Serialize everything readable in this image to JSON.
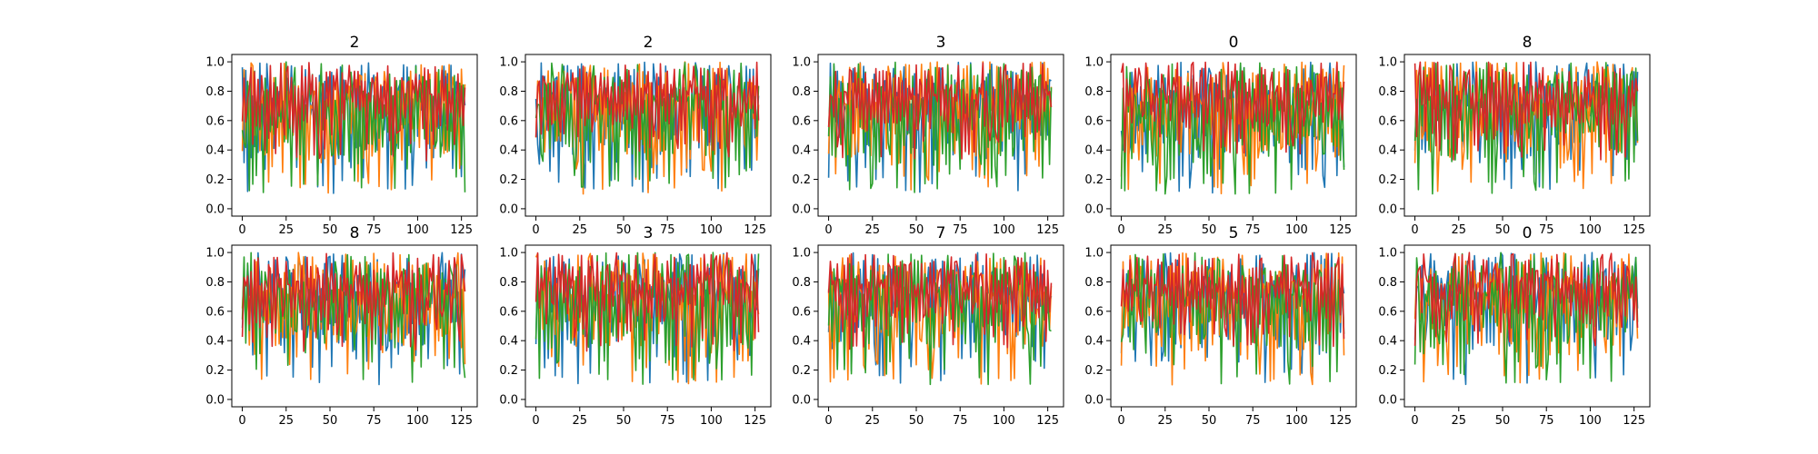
{
  "chart_data": [
    {
      "type": "line",
      "title": "2",
      "xlim": [
        -6,
        134
      ],
      "ylim": [
        -0.05,
        1.05
      ],
      "xticks": [
        0,
        25,
        50,
        75,
        100,
        125
      ],
      "yticks": [
        0.0,
        0.2,
        0.4,
        0.6,
        0.8,
        1.0
      ],
      "x_range": [
        0,
        127
      ],
      "series_colors": [
        "#1f77b4",
        "#ff7f0e",
        "#2ca02c",
        "#d62728"
      ]
    },
    {
      "type": "line",
      "title": "2",
      "xlim": [
        -6,
        134
      ],
      "ylim": [
        -0.05,
        1.05
      ],
      "xticks": [
        0,
        25,
        50,
        75,
        100,
        125
      ],
      "yticks": [
        0.0,
        0.2,
        0.4,
        0.6,
        0.8,
        1.0
      ],
      "x_range": [
        0,
        127
      ],
      "series_colors": [
        "#1f77b4",
        "#ff7f0e",
        "#2ca02c",
        "#d62728"
      ]
    },
    {
      "type": "line",
      "title": "3",
      "xlim": [
        -6,
        134
      ],
      "ylim": [
        -0.05,
        1.05
      ],
      "xticks": [
        0,
        25,
        50,
        75,
        100,
        125
      ],
      "yticks": [
        0.0,
        0.2,
        0.4,
        0.6,
        0.8,
        1.0
      ],
      "x_range": [
        0,
        127
      ],
      "series_colors": [
        "#1f77b4",
        "#ff7f0e",
        "#2ca02c",
        "#d62728"
      ]
    },
    {
      "type": "line",
      "title": "0",
      "xlim": [
        -6,
        134
      ],
      "ylim": [
        -0.05,
        1.05
      ],
      "xticks": [
        0,
        25,
        50,
        75,
        100,
        125
      ],
      "yticks": [
        0.0,
        0.2,
        0.4,
        0.6,
        0.8,
        1.0
      ],
      "x_range": [
        0,
        127
      ],
      "series_colors": [
        "#1f77b4",
        "#ff7f0e",
        "#2ca02c",
        "#d62728"
      ]
    },
    {
      "type": "line",
      "title": "8",
      "xlim": [
        -6,
        134
      ],
      "ylim": [
        -0.05,
        1.05
      ],
      "xticks": [
        0,
        25,
        50,
        75,
        100,
        125
      ],
      "yticks": [
        0.0,
        0.2,
        0.4,
        0.6,
        0.8,
        1.0
      ],
      "x_range": [
        0,
        127
      ],
      "series_colors": [
        "#1f77b4",
        "#ff7f0e",
        "#2ca02c",
        "#d62728"
      ]
    },
    {
      "type": "line",
      "title": "8",
      "xlim": [
        -6,
        134
      ],
      "ylim": [
        -0.05,
        1.05
      ],
      "xticks": [
        0,
        25,
        50,
        75,
        100,
        125
      ],
      "yticks": [
        0.0,
        0.2,
        0.4,
        0.6,
        0.8,
        1.0
      ],
      "x_range": [
        0,
        127
      ],
      "series_colors": [
        "#1f77b4",
        "#ff7f0e",
        "#2ca02c",
        "#d62728"
      ]
    },
    {
      "type": "line",
      "title": "3",
      "xlim": [
        -6,
        134
      ],
      "ylim": [
        -0.05,
        1.05
      ],
      "xticks": [
        0,
        25,
        50,
        75,
        100,
        125
      ],
      "yticks": [
        0.0,
        0.2,
        0.4,
        0.6,
        0.8,
        1.0
      ],
      "x_range": [
        0,
        127
      ],
      "series_colors": [
        "#1f77b4",
        "#ff7f0e",
        "#2ca02c",
        "#d62728"
      ]
    },
    {
      "type": "line",
      "title": "7",
      "xlim": [
        -6,
        134
      ],
      "ylim": [
        -0.05,
        1.05
      ],
      "xticks": [
        0,
        25,
        50,
        75,
        100,
        125
      ],
      "yticks": [
        0.0,
        0.2,
        0.4,
        0.6,
        0.8,
        1.0
      ],
      "x_range": [
        0,
        127
      ],
      "series_colors": [
        "#1f77b4",
        "#ff7f0e",
        "#2ca02c",
        "#d62728"
      ]
    },
    {
      "type": "line",
      "title": "5",
      "xlim": [
        -6,
        134
      ],
      "ylim": [
        -0.05,
        1.05
      ],
      "xticks": [
        0,
        25,
        50,
        75,
        100,
        125
      ],
      "yticks": [
        0.0,
        0.2,
        0.4,
        0.6,
        0.8,
        1.0
      ],
      "x_range": [
        0,
        127
      ],
      "series_colors": [
        "#1f77b4",
        "#ff7f0e",
        "#2ca02c",
        "#d62728"
      ]
    },
    {
      "type": "line",
      "title": "0",
      "xlim": [
        -6,
        134
      ],
      "ylim": [
        -0.05,
        1.05
      ],
      "xticks": [
        0,
        25,
        50,
        75,
        100,
        125
      ],
      "yticks": [
        0.0,
        0.2,
        0.4,
        0.6,
        0.8,
        1.0
      ],
      "x_range": [
        0,
        127
      ],
      "series_colors": [
        "#1f77b4",
        "#ff7f0e",
        "#2ca02c",
        "#d62728"
      ]
    }
  ]
}
